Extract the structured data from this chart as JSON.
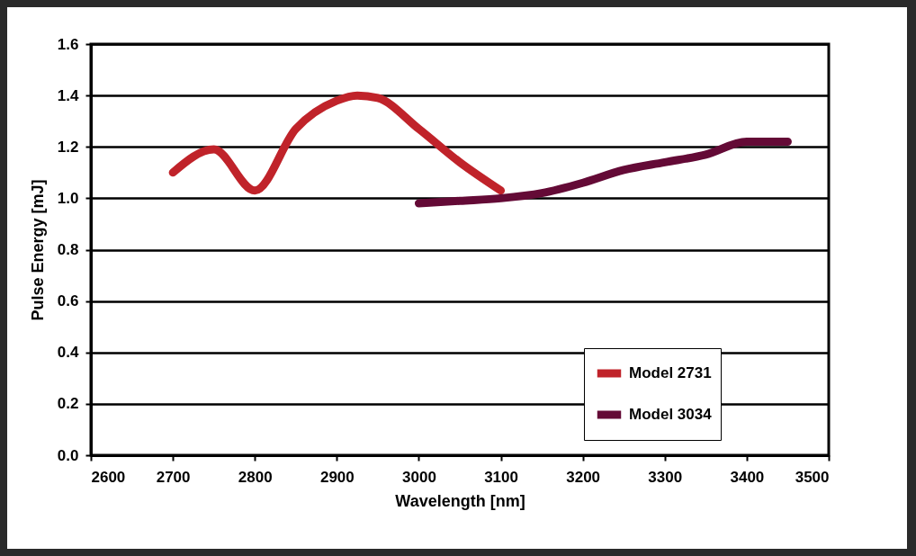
{
  "chart_data": {
    "type": "line",
    "xlabel": "Wavelength  [nm]",
    "ylabel": "Pulse Energy  [mJ]",
    "xlim": [
      2600,
      3500
    ],
    "xticks": [
      2600,
      2700,
      2800,
      2900,
      3000,
      3100,
      3200,
      3300,
      3400,
      3500
    ],
    "ylim": [
      0,
      1.6
    ],
    "yticks": [
      {
        "value": 0,
        "label": "0.0"
      },
      0.2,
      0.4,
      0.6,
      0.8,
      {
        "value": 1,
        "label": "1.0"
      },
      1.2,
      1.4,
      1.6
    ],
    "grid": "y",
    "legend": "bottom right",
    "marker": "none",
    "line_style": "solid",
    "series": [
      {
        "name": "Model 2731",
        "color": "#c0232a",
        "x": [
          2700,
          2750,
          2800,
          2850,
          2900,
          2925,
          2950,
          3000,
          3050,
          3100
        ],
        "values": [
          1.1,
          1.19,
          1.03,
          1.27,
          1.38,
          1.4,
          1.39,
          1.27,
          1.14,
          1.03
        ]
      },
      {
        "name": "Model 3034",
        "color": "#640a36",
        "x": [
          3000,
          3050,
          3100,
          3150,
          3200,
          3250,
          3300,
          3350,
          3400,
          3450
        ],
        "values": [
          0.98,
          0.99,
          1.0,
          1.02,
          1.06,
          1.11,
          1.14,
          1.17,
          1.22,
          1.22
        ]
      }
    ]
  }
}
